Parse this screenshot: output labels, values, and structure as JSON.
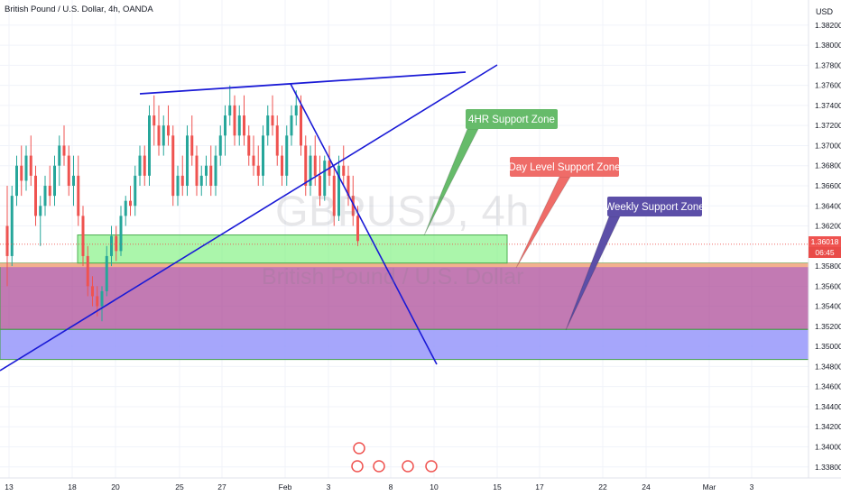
{
  "header": {
    "symbol_title": "British Pound / U.S. Dollar, 4h, OANDA",
    "currency": "USD"
  },
  "watermark": {
    "symbol": "GBPUSD, 4h",
    "name": "British Pound / U.S. Dollar"
  },
  "price_tag": {
    "price": "1.36018",
    "countdown": "06:45"
  },
  "annotations": [
    {
      "text": "4HR Support Zone",
      "fill": "#66bb6a"
    },
    {
      "text": "Day Level Support Zone",
      "fill": "#ef6c68"
    },
    {
      "text": "Weekly Support Zone",
      "fill": "#5c4fa8"
    }
  ],
  "colors": {
    "up": "#26a69a",
    "down": "#ef5350",
    "trend_line": "#1a1ad6"
  },
  "chart_data": {
    "type": "candlestick",
    "title": "British Pound / U.S. Dollar, 4h, OANDA",
    "ylabel": "USD",
    "ylim": [
      1.3369,
      1.3845
    ],
    "y_ticks": [
      "1.38200",
      "1.38000",
      "1.37800",
      "1.37600",
      "1.37400",
      "1.37200",
      "1.37000",
      "1.36800",
      "1.36600",
      "1.36400",
      "1.36200",
      "1.36018",
      "1.35800",
      "1.35600",
      "1.35400",
      "1.35200",
      "1.35000",
      "1.34800",
      "1.34600",
      "1.34400",
      "1.34200",
      "1.34000",
      "1.33800"
    ],
    "x_ticks": [
      "13",
      "18",
      "20",
      "25",
      "27",
      "Feb",
      "3",
      "8",
      "10",
      "15",
      "17",
      "22",
      "24",
      "Mar",
      "3"
    ],
    "last_price": 1.36018,
    "grid": true,
    "zones": [
      {
        "name": "4HR Support Zone",
        "from": 1.3583,
        "to": 1.3611
      },
      {
        "name": "Day Level Support Zone",
        "from": 1.3517,
        "to": 1.3583
      },
      {
        "name": "Weekly Support Zone",
        "from": 1.3487,
        "to": 1.3517
      }
    ],
    "candles": [
      [
        1.362,
        1.366,
        1.356,
        1.359
      ],
      [
        1.359,
        1.366,
        1.358,
        1.365
      ],
      [
        1.365,
        1.369,
        1.364,
        1.368
      ],
      [
        1.368,
        1.37,
        1.365,
        1.3665
      ],
      [
        1.3665,
        1.37,
        1.3655,
        1.369
      ],
      [
        1.369,
        1.371,
        1.366,
        1.367
      ],
      [
        1.367,
        1.368,
        1.362,
        1.363
      ],
      [
        1.363,
        1.365,
        1.36,
        1.364
      ],
      [
        1.364,
        1.367,
        1.363,
        1.366
      ],
      [
        1.366,
        1.368,
        1.364,
        1.365
      ],
      [
        1.365,
        1.369,
        1.364,
        1.368
      ],
      [
        1.368,
        1.371,
        1.366,
        1.37
      ],
      [
        1.37,
        1.372,
        1.368,
        1.369
      ],
      [
        1.369,
        1.37,
        1.365,
        1.366
      ],
      [
        1.366,
        1.369,
        1.364,
        1.367
      ],
      [
        1.367,
        1.369,
        1.362,
        1.363
      ],
      [
        1.363,
        1.364,
        1.358,
        1.359
      ],
      [
        1.359,
        1.36,
        1.355,
        1.356
      ],
      [
        1.356,
        1.357,
        1.354,
        1.355
      ],
      [
        1.355,
        1.356,
        1.353,
        1.354
      ],
      [
        1.354,
        1.356,
        1.3525,
        1.3555
      ],
      [
        1.3555,
        1.36,
        1.355,
        1.359
      ],
      [
        1.359,
        1.362,
        1.358,
        1.361
      ],
      [
        1.361,
        1.362,
        1.3585,
        1.3595
      ],
      [
        1.3595,
        1.364,
        1.359,
        1.363
      ],
      [
        1.363,
        1.365,
        1.362,
        1.3645
      ],
      [
        1.3645,
        1.366,
        1.363,
        1.364
      ],
      [
        1.364,
        1.368,
        1.363,
        1.367
      ],
      [
        1.367,
        1.37,
        1.366,
        1.369
      ],
      [
        1.369,
        1.37,
        1.366,
        1.367
      ],
      [
        1.367,
        1.374,
        1.366,
        1.373
      ],
      [
        1.373,
        1.375,
        1.37,
        1.372
      ],
      [
        1.372,
        1.374,
        1.369,
        1.37
      ],
      [
        1.37,
        1.373,
        1.369,
        1.372
      ],
      [
        1.372,
        1.374,
        1.37,
        1.371
      ],
      [
        1.371,
        1.372,
        1.364,
        1.365
      ],
      [
        1.365,
        1.368,
        1.364,
        1.367
      ],
      [
        1.367,
        1.369,
        1.365,
        1.366
      ],
      [
        1.366,
        1.372,
        1.365,
        1.371
      ],
      [
        1.371,
        1.373,
        1.368,
        1.369
      ],
      [
        1.369,
        1.37,
        1.365,
        1.366
      ],
      [
        1.366,
        1.368,
        1.365,
        1.367
      ],
      [
        1.367,
        1.369,
        1.366,
        1.368
      ],
      [
        1.368,
        1.37,
        1.365,
        1.366
      ],
      [
        1.366,
        1.37,
        1.365,
        1.369
      ],
      [
        1.369,
        1.372,
        1.368,
        1.371
      ],
      [
        1.371,
        1.374,
        1.369,
        1.373
      ],
      [
        1.373,
        1.376,
        1.372,
        1.374
      ],
      [
        1.374,
        1.375,
        1.37,
        1.371
      ],
      [
        1.371,
        1.374,
        1.37,
        1.373
      ],
      [
        1.373,
        1.375,
        1.37,
        1.371
      ],
      [
        1.371,
        1.372,
        1.368,
        1.369
      ],
      [
        1.369,
        1.371,
        1.367,
        1.368
      ],
      [
        1.368,
        1.37,
        1.366,
        1.367
      ],
      [
        1.367,
        1.372,
        1.366,
        1.371
      ],
      [
        1.371,
        1.374,
        1.37,
        1.373
      ],
      [
        1.373,
        1.375,
        1.371,
        1.372
      ],
      [
        1.372,
        1.373,
        1.368,
        1.369
      ],
      [
        1.369,
        1.37,
        1.366,
        1.367
      ],
      [
        1.367,
        1.372,
        1.366,
        1.371
      ],
      [
        1.371,
        1.374,
        1.37,
        1.373
      ],
      [
        1.373,
        1.3755,
        1.372,
        1.374
      ],
      [
        1.374,
        1.375,
        1.369,
        1.37
      ],
      [
        1.37,
        1.371,
        1.365,
        1.366
      ],
      [
        1.366,
        1.37,
        1.365,
        1.369
      ],
      [
        1.369,
        1.371,
        1.366,
        1.367
      ],
      [
        1.367,
        1.369,
        1.364,
        1.365
      ],
      [
        1.365,
        1.369,
        1.3645,
        1.3685
      ],
      [
        1.3685,
        1.37,
        1.366,
        1.367
      ],
      [
        1.367,
        1.368,
        1.362,
        1.363
      ],
      [
        1.363,
        1.369,
        1.3625,
        1.368
      ],
      [
        1.368,
        1.37,
        1.366,
        1.367
      ],
      [
        1.367,
        1.368,
        1.364,
        1.365
      ],
      [
        1.365,
        1.367,
        1.362,
        1.363
      ],
      [
        1.363,
        1.364,
        1.36,
        1.3605
      ]
    ]
  }
}
